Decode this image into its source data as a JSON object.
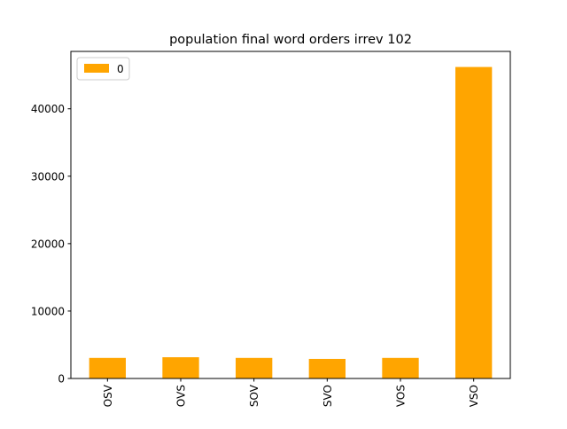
{
  "chart_data": {
    "type": "bar",
    "title": "population final word orders irrev 102",
    "xlabel": "",
    "ylabel": "",
    "categories": [
      "OSV",
      "OVS",
      "SOV",
      "SVO",
      "VOS",
      "VSO"
    ],
    "series": [
      {
        "name": "0",
        "color": "#ffa500",
        "values": [
          3050,
          3150,
          3050,
          2900,
          3050,
          46200
        ]
      }
    ],
    "ylim": [
      0,
      48510
    ],
    "yticks": [
      0,
      10000,
      20000,
      30000,
      40000
    ],
    "ytick_labels": [
      "0",
      "10000",
      "20000",
      "30000",
      "40000"
    ],
    "legend_position": "top-left",
    "grid": false
  }
}
